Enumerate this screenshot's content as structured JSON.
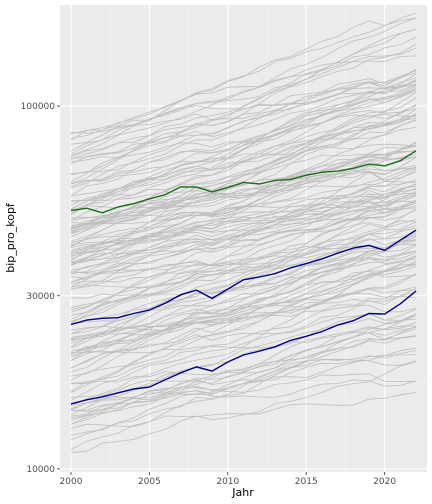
{
  "chart_data": {
    "type": "line",
    "title": "",
    "xlabel": "Jahr",
    "ylabel": "bip_pro_kopf",
    "xlim": [
      1999.3,
      2022.7
    ],
    "ylim": [
      9800,
      190000
    ],
    "y_scale": "log10",
    "x_ticks": [
      2000,
      2005,
      2010,
      2015,
      2020
    ],
    "x_tick_labels": [
      "2000",
      "2005",
      "2010",
      "2015",
      "2020"
    ],
    "y_ticks": [
      10000,
      30000,
      100000
    ],
    "y_tick_labels": [
      "10000",
      "30000",
      "100000"
    ],
    "grid": true,
    "legend": "none",
    "background_lines": {
      "description_count": 140,
      "value_range_2000": [
        11000,
        85000
      ],
      "value_range_2022": [
        17000,
        165000
      ],
      "color": "#bebebe"
    },
    "series": [
      {
        "color": "#1a6b1a",
        "x": [
          2000,
          2001,
          2002,
          2003,
          2004,
          2005,
          2006,
          2007,
          2008,
          2009,
          2010,
          2011,
          2012,
          2013,
          2014,
          2015,
          2016,
          2017,
          2018,
          2019,
          2020,
          2021,
          2022
        ],
        "values": [
          51500,
          52300,
          50800,
          52700,
          53900,
          55500,
          57000,
          59900,
          59800,
          58000,
          59700,
          61600,
          61000,
          62400,
          62800,
          64500,
          65700,
          66200,
          67400,
          69200,
          68400,
          70700,
          75300
        ]
      },
      {
        "color": "#00008b",
        "x": [
          2000,
          2001,
          2002,
          2003,
          2004,
          2005,
          2006,
          2007,
          2008,
          2009,
          2010,
          2011,
          2012,
          2013,
          2014,
          2015,
          2016,
          2017,
          2018,
          2019,
          2020,
          2021,
          2022
        ],
        "values": [
          25000,
          25700,
          26000,
          26100,
          26800,
          27400,
          28600,
          30200,
          31100,
          29500,
          31300,
          33200,
          33800,
          34500,
          35800,
          36800,
          37900,
          39300,
          40600,
          41300,
          40000,
          42700,
          45500
        ]
      },
      {
        "color": "#00008b",
        "x": [
          2000,
          2001,
          2002,
          2003,
          2004,
          2005,
          2006,
          2007,
          2008,
          2009,
          2010,
          2011,
          2012,
          2013,
          2014,
          2015,
          2016,
          2017,
          2018,
          2019,
          2020,
          2021,
          2022
        ],
        "values": [
          15100,
          15500,
          15800,
          16200,
          16600,
          16800,
          17600,
          18400,
          19100,
          18600,
          19700,
          20600,
          21100,
          21700,
          22600,
          23200,
          23900,
          24900,
          25600,
          26800,
          26700,
          28500,
          30900
        ]
      }
    ]
  }
}
